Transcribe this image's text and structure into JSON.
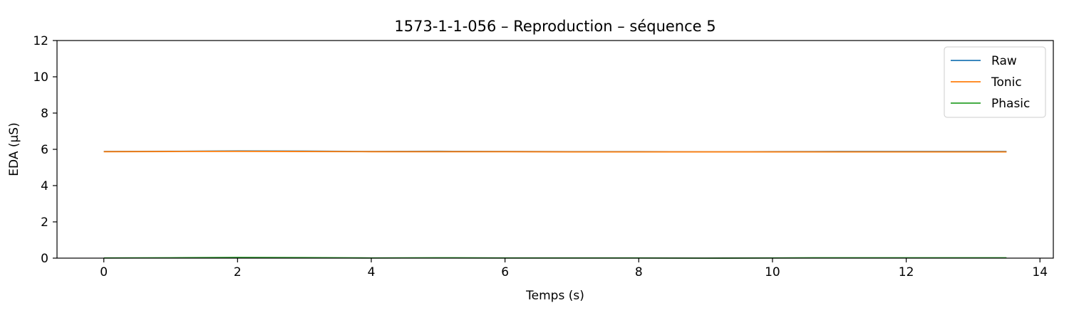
{
  "chart_data": {
    "type": "line",
    "title": "1573-1-1-056 – Reproduction – séquence 5",
    "xlabel": "Temps (s)",
    "ylabel": "EDA (µS)",
    "xlim": [
      -0.7,
      14.2
    ],
    "ylim": [
      0,
      12
    ],
    "xticks": [
      0,
      2,
      4,
      6,
      8,
      10,
      12,
      14
    ],
    "yticks": [
      0,
      2,
      4,
      6,
      8,
      10,
      12
    ],
    "xtick_labels": [
      "0",
      "2",
      "4",
      "6",
      "8",
      "10",
      "12",
      "14"
    ],
    "ytick_labels": [
      "0",
      "2",
      "4",
      "6",
      "8",
      "10",
      "12"
    ],
    "grid": false,
    "legend": "top-right",
    "x": [
      0,
      1,
      2,
      3,
      4,
      5,
      6,
      7,
      8,
      9,
      10,
      11,
      12,
      13,
      13.5
    ],
    "series": [
      {
        "name": "Raw",
        "color": "#1f77b4",
        "values": [
          5.88,
          5.89,
          5.91,
          5.9,
          5.88,
          5.89,
          5.88,
          5.87,
          5.87,
          5.86,
          5.87,
          5.88,
          5.88,
          5.88,
          5.88
        ]
      },
      {
        "name": "Tonic",
        "color": "#ff7f0e",
        "values": [
          5.87,
          5.88,
          5.89,
          5.88,
          5.87,
          5.87,
          5.87,
          5.86,
          5.86,
          5.86,
          5.86,
          5.86,
          5.86,
          5.86,
          5.86
        ]
      },
      {
        "name": "Phasic",
        "color": "#2ca02c",
        "values": [
          0.01,
          0.02,
          0.04,
          0.03,
          0.01,
          0.02,
          0.01,
          0.01,
          0.01,
          0.0,
          0.01,
          0.02,
          0.02,
          0.02,
          0.02
        ]
      }
    ]
  }
}
